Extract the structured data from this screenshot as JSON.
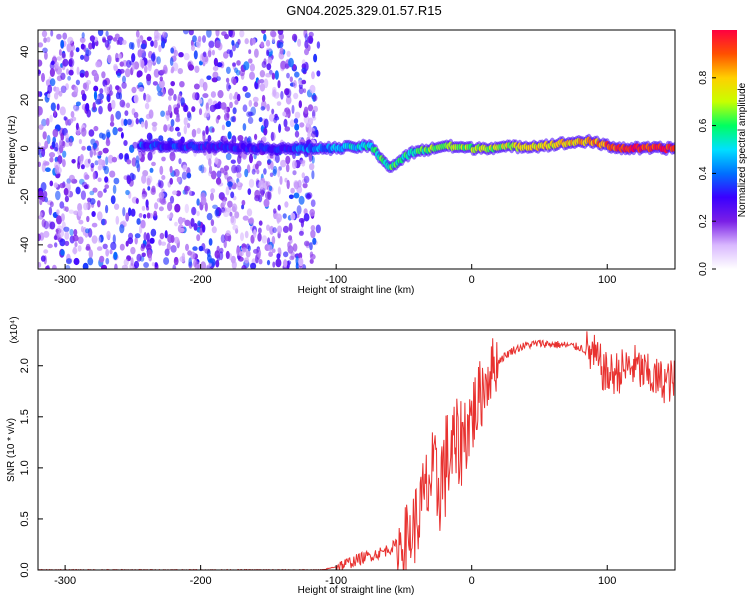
{
  "figure": {
    "title": "GN04.2025.329.01.57.R15"
  },
  "colors": {
    "snr_line": "#e8312f",
    "axis": "#000000",
    "background": "#ffffff"
  },
  "chart_data": [
    {
      "type": "heatmap",
      "xlabel": "Height of straight line (km)",
      "ylabel": "Frequency (Hz)",
      "xlim": [
        -320,
        150
      ],
      "ylim": [
        -50,
        49
      ],
      "x_ticks": [
        -300,
        -200,
        -100,
        0,
        100
      ],
      "y_ticks": [
        -40,
        -20,
        0,
        20,
        40
      ],
      "colorbar": {
        "label": "Normalized spectral amplitude",
        "range": [
          0,
          1
        ],
        "ticks": [
          "0.0",
          "0.2",
          "0.4",
          "0.6",
          "0.8"
        ],
        "stops": [
          "#ffffff",
          "#d9b8ff",
          "#7a1fe6",
          "#3a00ff",
          "#0070ff",
          "#00e0ff",
          "#00ff60",
          "#c8ff00",
          "#ffd000",
          "#ff5000",
          "#ff0040"
        ]
      },
      "ridge": [
        {
          "x": -245,
          "f": 1,
          "a": 0.35
        },
        {
          "x": -200,
          "f": 1,
          "a": 0.3
        },
        {
          "x": -150,
          "f": 0,
          "a": 0.3
        },
        {
          "x": -100,
          "f": 0,
          "a": 0.45
        },
        {
          "x": -75,
          "f": 1,
          "a": 0.55
        },
        {
          "x": -60,
          "f": -8,
          "a": 0.6
        },
        {
          "x": -45,
          "f": -2,
          "a": 0.55
        },
        {
          "x": -20,
          "f": 1,
          "a": 0.7
        },
        {
          "x": 0,
          "f": 0,
          "a": 0.65
        },
        {
          "x": 50,
          "f": 1,
          "a": 0.75
        },
        {
          "x": 85,
          "f": 3,
          "a": 0.8
        },
        {
          "x": 110,
          "f": 0,
          "a": 0.95
        },
        {
          "x": 150,
          "f": 0,
          "a": 0.95
        }
      ],
      "noise_region_x": [
        -320,
        -113
      ]
    },
    {
      "type": "line",
      "xlabel": "Height of straight line (km)",
      "ylabel": "SNR (10 * v/v)",
      "y_multiplier_label": "(x10⁴)",
      "xlim": [
        -320,
        150
      ],
      "ylim": [
        0,
        2.35
      ],
      "x_ticks": [
        -300,
        -200,
        -100,
        0,
        100
      ],
      "y_ticks": [
        "0.0",
        "0.5",
        "1.0",
        "1.5",
        "2.0"
      ],
      "series": [
        {
          "x": [
            -320,
            -250,
            -200,
            -150,
            -110,
            -95,
            -80,
            -65,
            -50,
            -45,
            -40,
            -35,
            -30,
            -25,
            -20,
            -15,
            -10,
            -5,
            0,
            5,
            10,
            15,
            20,
            30,
            40,
            50,
            60,
            70,
            80,
            90,
            95,
            100,
            110,
            120,
            130,
            140,
            150
          ],
          "values": [
            0.0,
            0.0,
            0.0,
            0.0,
            0.0,
            0.05,
            0.12,
            0.18,
            0.28,
            0.35,
            0.5,
            0.7,
            0.9,
            0.8,
            1.0,
            1.15,
            1.2,
            1.35,
            1.5,
            1.65,
            1.85,
            1.98,
            2.05,
            2.15,
            2.2,
            2.22,
            2.21,
            2.2,
            2.18,
            2.1,
            2.0,
            1.9,
            1.95,
            2.0,
            1.9,
            1.85,
            1.85
          ]
        }
      ]
    }
  ]
}
